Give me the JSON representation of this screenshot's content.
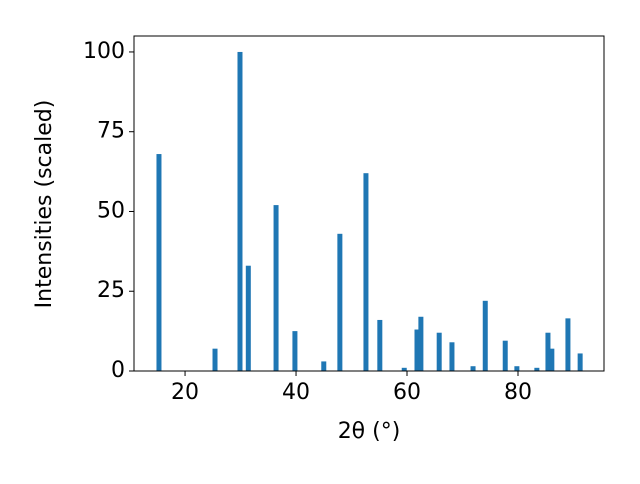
{
  "chart_data": {
    "type": "bar",
    "xlabel": "2θ (°)",
    "ylabel": "Intensities (scaled)",
    "x": [
      15.3,
      25.4,
      29.9,
      31.4,
      36.4,
      39.8,
      45.0,
      47.9,
      52.6,
      55.1,
      59.5,
      61.8,
      62.5,
      65.8,
      68.1,
      71.9,
      74.1,
      77.7,
      79.8,
      83.4,
      85.4,
      86.1,
      89.0,
      91.2
    ],
    "values": [
      68,
      7,
      100,
      33,
      52,
      12.5,
      3,
      43,
      62,
      16,
      1,
      13,
      17,
      12,
      9,
      1.5,
      22,
      9.5,
      1.5,
      1,
      12,
      7,
      16.5,
      5.5
    ],
    "color": "#1f77b4",
    "xlim": [
      10.8,
      95.5
    ],
    "ylim": [
      0,
      105
    ],
    "xticks": [
      20,
      40,
      60,
      80
    ],
    "yticks": [
      0,
      25,
      50,
      75,
      100
    ],
    "grid": false
  }
}
